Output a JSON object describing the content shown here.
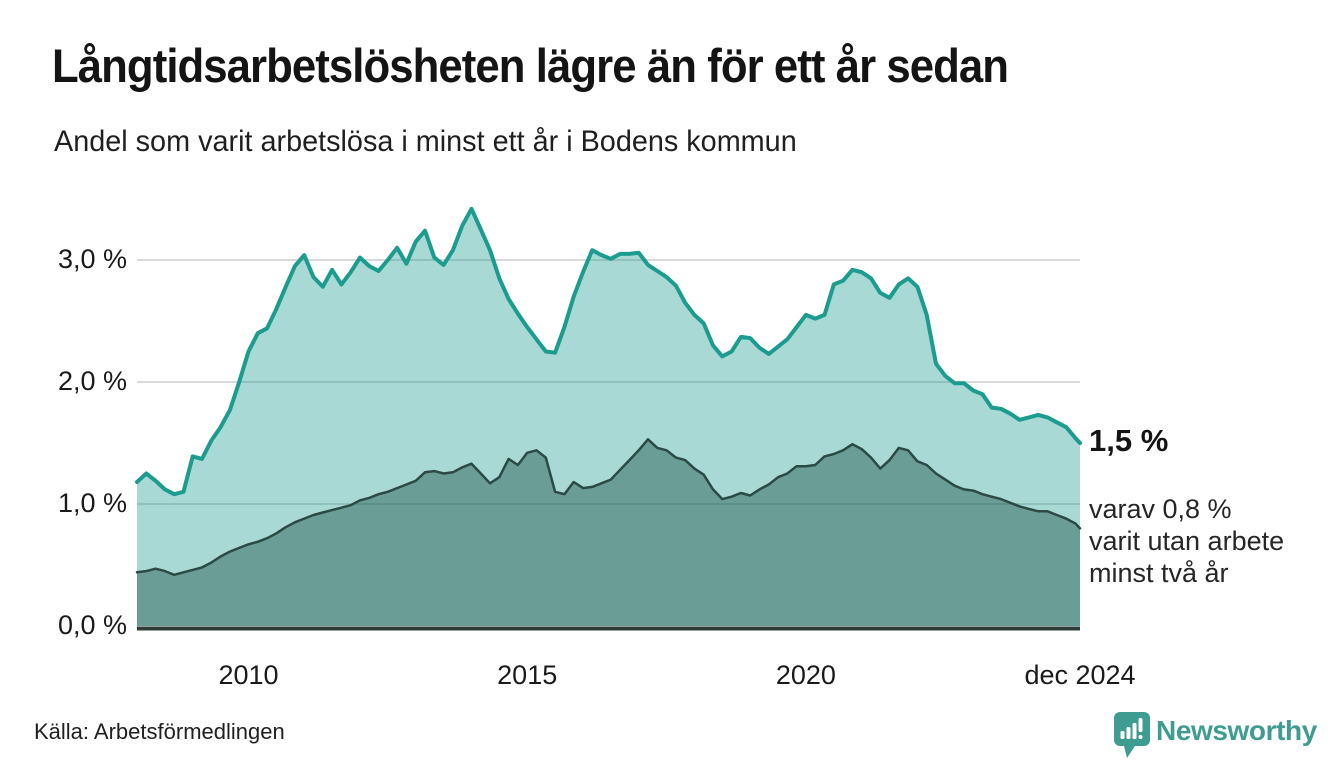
{
  "header": {
    "title": "Långtidsarbetslösheten lägre än för ett år sedan",
    "subtitle": "Andel som varit arbetslösa i minst ett år i Bodens kommun"
  },
  "annotations": {
    "end_value_label": "1,5 %",
    "secondary_line1": "varav 0,8 %",
    "secondary_line2": "varit utan arbete",
    "secondary_line3": "minst två år"
  },
  "footer": {
    "source": "Källa: Arbetsförmedlingen",
    "brand": "Newsworthy"
  },
  "icons": {
    "badge": "newsworthy-bar-chart-pin-icon"
  },
  "colors": {
    "accent_teal": "#1b9c8e",
    "light_area_fill": "rgba(27,156,142,0.38)",
    "dark_area_fill": "rgba(23,73,66,0.42)",
    "dark_line": "#2b4a44",
    "gridline": "#d9d9d9",
    "axis_line": "#2f3c38",
    "text_dark": "#141414",
    "brand_teal": "#3f9c90"
  },
  "chart_data": {
    "type": "area",
    "title": "Långtidsarbetslösheten lägre än för ett år sedan",
    "subtitle": "Andel som varit arbetslösa i minst ett år i Bodens kommun",
    "unit": "%",
    "ylim": [
      0,
      3.5
    ],
    "grid": "horizontal",
    "legend_position": "right-annotation",
    "y_ticks": [
      {
        "label": "0,0 %",
        "value": 0
      },
      {
        "label": "1,0 %",
        "value": 1
      },
      {
        "label": "2,0 %",
        "value": 2
      },
      {
        "label": "3,0 %",
        "value": 3
      }
    ],
    "x_ticks": [
      {
        "label": "2010",
        "t": 2010.0
      },
      {
        "label": "2015",
        "t": 2015.0
      },
      {
        "label": "2020",
        "t": 2020.0
      },
      {
        "label": "dec 2024",
        "t": 2024.9167
      }
    ],
    "x_range": [
      "2008-01",
      "2024-12"
    ],
    "series": [
      {
        "name": "arbetslösa minst ett år",
        "color": "#1b9c8e",
        "end_value": 1.5,
        "end_value_label": "1,5 %"
      },
      {
        "name": "utan arbete minst två år",
        "color": "#2b4a44",
        "end_value": 0.8,
        "end_value_label": "0,8 %"
      }
    ],
    "points": [
      [
        "2008-01",
        1.18,
        0.44
      ],
      [
        "2008-03",
        1.25,
        0.45
      ],
      [
        "2008-05",
        1.19,
        0.47
      ],
      [
        "2008-07",
        1.12,
        0.45
      ],
      [
        "2008-09",
        1.08,
        0.42
      ],
      [
        "2008-11",
        1.1,
        0.44
      ],
      [
        "2009-01",
        1.39,
        0.46
      ],
      [
        "2009-03",
        1.37,
        0.48
      ],
      [
        "2009-05",
        1.52,
        0.52
      ],
      [
        "2009-07",
        1.63,
        0.57
      ],
      [
        "2009-09",
        1.77,
        0.61
      ],
      [
        "2009-11",
        2.0,
        0.64
      ],
      [
        "2010-01",
        2.25,
        0.67
      ],
      [
        "2010-03",
        2.4,
        0.69
      ],
      [
        "2010-05",
        2.44,
        0.72
      ],
      [
        "2010-07",
        2.6,
        0.76
      ],
      [
        "2010-09",
        2.78,
        0.81
      ],
      [
        "2010-11",
        2.95,
        0.85
      ],
      [
        "2011-01",
        3.04,
        0.88
      ],
      [
        "2011-03",
        2.86,
        0.91
      ],
      [
        "2011-05",
        2.78,
        0.93
      ],
      [
        "2011-07",
        2.92,
        0.95
      ],
      [
        "2011-09",
        2.8,
        0.97
      ],
      [
        "2011-11",
        2.9,
        0.99
      ],
      [
        "2012-01",
        3.02,
        1.03
      ],
      [
        "2012-03",
        2.95,
        1.05
      ],
      [
        "2012-05",
        2.91,
        1.08
      ],
      [
        "2012-07",
        3.0,
        1.1
      ],
      [
        "2012-09",
        3.1,
        1.13
      ],
      [
        "2012-11",
        2.97,
        1.16
      ],
      [
        "2013-01",
        3.15,
        1.19
      ],
      [
        "2013-03",
        3.24,
        1.26
      ],
      [
        "2013-05",
        3.02,
        1.27
      ],
      [
        "2013-07",
        2.96,
        1.25
      ],
      [
        "2013-09",
        3.08,
        1.26
      ],
      [
        "2013-11",
        3.28,
        1.3
      ],
      [
        "2014-01",
        3.42,
        1.33
      ],
      [
        "2014-03",
        3.25,
        1.25
      ],
      [
        "2014-05",
        3.08,
        1.17
      ],
      [
        "2014-07",
        2.85,
        1.22
      ],
      [
        "2014-09",
        2.68,
        1.37
      ],
      [
        "2014-11",
        2.56,
        1.32
      ],
      [
        "2015-01",
        2.45,
        1.42
      ],
      [
        "2015-03",
        2.35,
        1.44
      ],
      [
        "2015-05",
        2.25,
        1.38
      ],
      [
        "2015-07",
        2.24,
        1.1
      ],
      [
        "2015-09",
        2.45,
        1.08
      ],
      [
        "2015-11",
        2.7,
        1.18
      ],
      [
        "2016-01",
        2.9,
        1.13
      ],
      [
        "2016-03",
        3.08,
        1.14
      ],
      [
        "2016-05",
        3.04,
        1.17
      ],
      [
        "2016-07",
        3.01,
        1.2
      ],
      [
        "2016-09",
        3.05,
        1.28
      ],
      [
        "2016-11",
        3.05,
        1.36
      ],
      [
        "2017-01",
        3.06,
        1.44
      ],
      [
        "2017-03",
        2.96,
        1.53
      ],
      [
        "2017-05",
        2.91,
        1.46
      ],
      [
        "2017-07",
        2.86,
        1.44
      ],
      [
        "2017-09",
        2.79,
        1.38
      ],
      [
        "2017-11",
        2.65,
        1.36
      ],
      [
        "2018-01",
        2.55,
        1.29
      ],
      [
        "2018-03",
        2.48,
        1.24
      ],
      [
        "2018-05",
        2.3,
        1.12
      ],
      [
        "2018-07",
        2.21,
        1.04
      ],
      [
        "2018-09",
        2.25,
        1.06
      ],
      [
        "2018-11",
        2.37,
        1.09
      ],
      [
        "2019-01",
        2.36,
        1.07
      ],
      [
        "2019-03",
        2.28,
        1.12
      ],
      [
        "2019-05",
        2.23,
        1.16
      ],
      [
        "2019-07",
        2.29,
        1.22
      ],
      [
        "2019-09",
        2.35,
        1.25
      ],
      [
        "2019-11",
        2.45,
        1.31
      ],
      [
        "2020-01",
        2.55,
        1.31
      ],
      [
        "2020-03",
        2.52,
        1.32
      ],
      [
        "2020-05",
        2.55,
        1.39
      ],
      [
        "2020-07",
        2.8,
        1.41
      ],
      [
        "2020-09",
        2.83,
        1.44
      ],
      [
        "2020-11",
        2.92,
        1.49
      ],
      [
        "2021-01",
        2.9,
        1.45
      ],
      [
        "2021-03",
        2.85,
        1.38
      ],
      [
        "2021-05",
        2.73,
        1.29
      ],
      [
        "2021-07",
        2.69,
        1.36
      ],
      [
        "2021-09",
        2.8,
        1.46
      ],
      [
        "2021-11",
        2.85,
        1.44
      ],
      [
        "2022-01",
        2.78,
        1.35
      ],
      [
        "2022-03",
        2.55,
        1.32
      ],
      [
        "2022-05",
        2.15,
        1.25
      ],
      [
        "2022-07",
        2.05,
        1.2
      ],
      [
        "2022-09",
        1.99,
        1.15
      ],
      [
        "2022-11",
        1.99,
        1.12
      ],
      [
        "2023-01",
        1.93,
        1.11
      ],
      [
        "2023-03",
        1.9,
        1.08
      ],
      [
        "2023-05",
        1.79,
        1.06
      ],
      [
        "2023-07",
        1.78,
        1.04
      ],
      [
        "2023-09",
        1.74,
        1.01
      ],
      [
        "2023-11",
        1.69,
        0.98
      ],
      [
        "2024-01",
        1.71,
        0.96
      ],
      [
        "2024-03",
        1.73,
        0.94
      ],
      [
        "2024-05",
        1.71,
        0.94
      ],
      [
        "2024-07",
        1.67,
        0.91
      ],
      [
        "2024-09",
        1.63,
        0.88
      ],
      [
        "2024-11",
        1.54,
        0.84
      ],
      [
        "2024-12",
        1.5,
        0.8
      ]
    ]
  }
}
